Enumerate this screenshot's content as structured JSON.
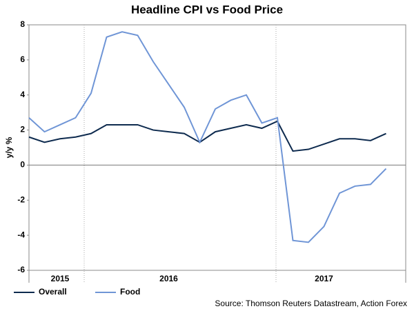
{
  "chart_data": {
    "type": "line",
    "title": "Headline CPI vs Food Price",
    "y_label": "y/y %",
    "source": "Source: Thomson Reuters Datastream, Action Forex",
    "categories": [
      null,
      null,
      "2015",
      null,
      null,
      null,
      null,
      null,
      null,
      "2016",
      null,
      null,
      null,
      null,
      null,
      null,
      null,
      null,
      null,
      "2017",
      null,
      null,
      null,
      null
    ],
    "series": [
      {
        "name": "Overall",
        "color": "#0d2a4e",
        "values": [
          1.6,
          1.3,
          1.5,
          1.6,
          1.8,
          2.3,
          2.3,
          2.3,
          2.0,
          1.9,
          1.8,
          1.3,
          1.9,
          2.1,
          2.3,
          2.1,
          2.5,
          0.8,
          0.9,
          1.2,
          1.5,
          1.5,
          1.4,
          1.8
        ]
      },
      {
        "name": "Food",
        "color": "#6f95d6",
        "values": [
          2.7,
          1.9,
          2.3,
          2.7,
          4.1,
          7.3,
          7.6,
          7.4,
          5.9,
          4.6,
          3.3,
          1.3,
          3.2,
          3.7,
          4.0,
          2.4,
          2.7,
          -4.3,
          -4.4,
          -3.5,
          -1.6,
          -1.2,
          -1.1,
          -0.2
        ]
      }
    ],
    "ylim": [
      -6,
      8
    ],
    "yticks": [
      -6,
      -4,
      -2,
      0,
      2,
      4,
      6,
      8
    ],
    "legend": "bottom-left"
  }
}
